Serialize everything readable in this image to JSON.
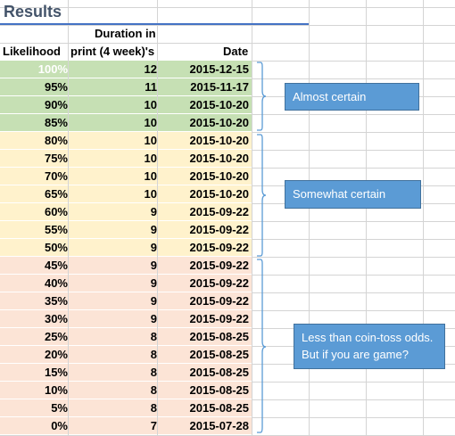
{
  "title": "Results",
  "headers": {
    "likelihood": "Likelihood",
    "duration_line1": "Duration in",
    "duration_line2": "print (4 week)'s",
    "date": "Date"
  },
  "colors": {
    "green": "#c6e0b4",
    "yellow": "#fff2cc",
    "red": "#fce4d6",
    "callout": "#5b9bd5",
    "bracket": "#5b9bd5"
  },
  "rows": [
    {
      "likelihood": "100%",
      "duration": "12",
      "date": "2015-12-15",
      "band": "green",
      "dim": true
    },
    {
      "likelihood": "95%",
      "duration": "11",
      "date": "2015-11-17",
      "band": "green"
    },
    {
      "likelihood": "90%",
      "duration": "10",
      "date": "2015-10-20",
      "band": "green"
    },
    {
      "likelihood": "85%",
      "duration": "10",
      "date": "2015-10-20",
      "band": "green"
    },
    {
      "likelihood": "80%",
      "duration": "10",
      "date": "2015-10-20",
      "band": "yellow"
    },
    {
      "likelihood": "75%",
      "duration": "10",
      "date": "2015-10-20",
      "band": "yellow"
    },
    {
      "likelihood": "70%",
      "duration": "10",
      "date": "2015-10-20",
      "band": "yellow"
    },
    {
      "likelihood": "65%",
      "duration": "10",
      "date": "2015-10-20",
      "band": "yellow"
    },
    {
      "likelihood": "60%",
      "duration": "9",
      "date": "2015-09-22",
      "band": "yellow"
    },
    {
      "likelihood": "55%",
      "duration": "9",
      "date": "2015-09-22",
      "band": "yellow"
    },
    {
      "likelihood": "50%",
      "duration": "9",
      "date": "2015-09-22",
      "band": "yellow"
    },
    {
      "likelihood": "45%",
      "duration": "9",
      "date": "2015-09-22",
      "band": "red"
    },
    {
      "likelihood": "40%",
      "duration": "9",
      "date": "2015-09-22",
      "band": "red"
    },
    {
      "likelihood": "35%",
      "duration": "9",
      "date": "2015-09-22",
      "band": "red"
    },
    {
      "likelihood": "30%",
      "duration": "9",
      "date": "2015-09-22",
      "band": "red"
    },
    {
      "likelihood": "25%",
      "duration": "8",
      "date": "2015-08-25",
      "band": "red"
    },
    {
      "likelihood": "20%",
      "duration": "8",
      "date": "2015-08-25",
      "band": "red"
    },
    {
      "likelihood": "15%",
      "duration": "8",
      "date": "2015-08-25",
      "band": "red"
    },
    {
      "likelihood": "10%",
      "duration": "8",
      "date": "2015-08-25",
      "band": "red"
    },
    {
      "likelihood": "5%",
      "duration": "8",
      "date": "2015-08-25",
      "band": "red"
    },
    {
      "likelihood": "0%",
      "duration": "7",
      "date": "2015-07-28",
      "band": "red"
    }
  ],
  "callouts": {
    "almost": "Almost certain",
    "somewhat": "Somewhat certain",
    "less_line1": "Less than coin-toss odds.",
    "less_line2": "But if you are game?"
  }
}
